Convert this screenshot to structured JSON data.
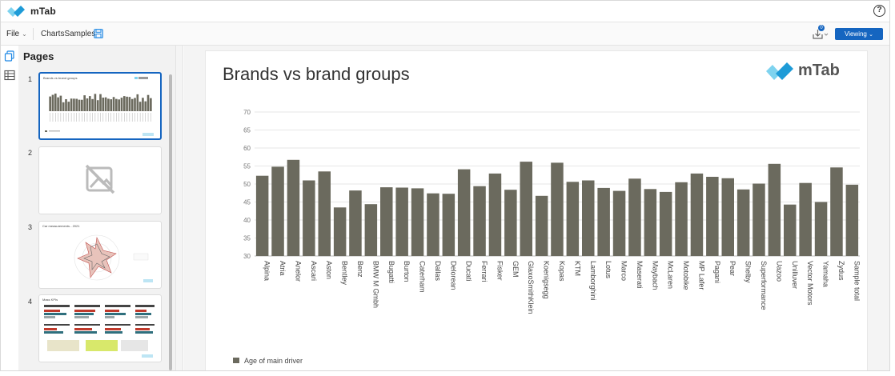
{
  "app": {
    "title": "mTab"
  },
  "toolbar": {
    "file_label": "File",
    "doc_name": "ChartsSamples",
    "export_badge": "0",
    "viewing_label": "Viewing"
  },
  "pages": {
    "title": "Pages",
    "items": [
      {
        "num": "1",
        "title": "Brands vs brand groups"
      },
      {
        "num": "2",
        "title": ""
      },
      {
        "num": "3",
        "title": "Car measurements - 2021"
      },
      {
        "num": "4",
        "title": "Mass KPIs"
      }
    ]
  },
  "logo": {
    "text": "mTab"
  },
  "colors": {
    "accent": "#1565c0",
    "bar": "#6b6a5e",
    "logo_light": "#7ed3ef",
    "logo_dark": "#1e9bd7"
  },
  "chart_data": {
    "type": "bar",
    "title": "Brands vs brand groups",
    "xlabel": "",
    "ylabel": "",
    "ylim": [
      30,
      70
    ],
    "yticks": [
      30,
      35,
      40,
      45,
      50,
      55,
      60,
      65,
      70
    ],
    "grid": true,
    "legend_position": "bottom-left",
    "categories": [
      "Alpina",
      "Atria",
      "Anelor",
      "Ascari",
      "Aston",
      "Bentley",
      "Benz",
      "BMW M Gmbh",
      "Bugatti",
      "Burton",
      "Caterham",
      "Dallas",
      "Delorean",
      "Ducati",
      "Ferrari",
      "Fisker",
      "GEM",
      "GlaxoSmithKlein",
      "Koenigsegg",
      "Kopas",
      "KTM",
      "Lamborghini",
      "Lotus",
      "Marco",
      "Maserati",
      "Maybach",
      "McLaren",
      "Motobike",
      "MP Lafer",
      "Pagani",
      "Pear",
      "Shelby",
      "Superformance",
      "Uazoo",
      "Unilluver",
      "Vector Motors",
      "Yamaha",
      "Zydus",
      "Sample total"
    ],
    "series": [
      {
        "name": "Age of main driver",
        "values": [
          52.3,
          54.8,
          56.7,
          51.0,
          53.5,
          43.5,
          48.2,
          44.4,
          49.1,
          49.0,
          48.8,
          47.4,
          47.3,
          54.1,
          49.4,
          52.9,
          48.4,
          56.2,
          46.7,
          55.9,
          50.6,
          51.0,
          48.9,
          48.1,
          51.5,
          48.6,
          47.8,
          50.5,
          52.9,
          52.0,
          51.6,
          48.5,
          50.1,
          55.6,
          44.3,
          50.3,
          45.0,
          54.6,
          49.8
        ]
      }
    ]
  }
}
